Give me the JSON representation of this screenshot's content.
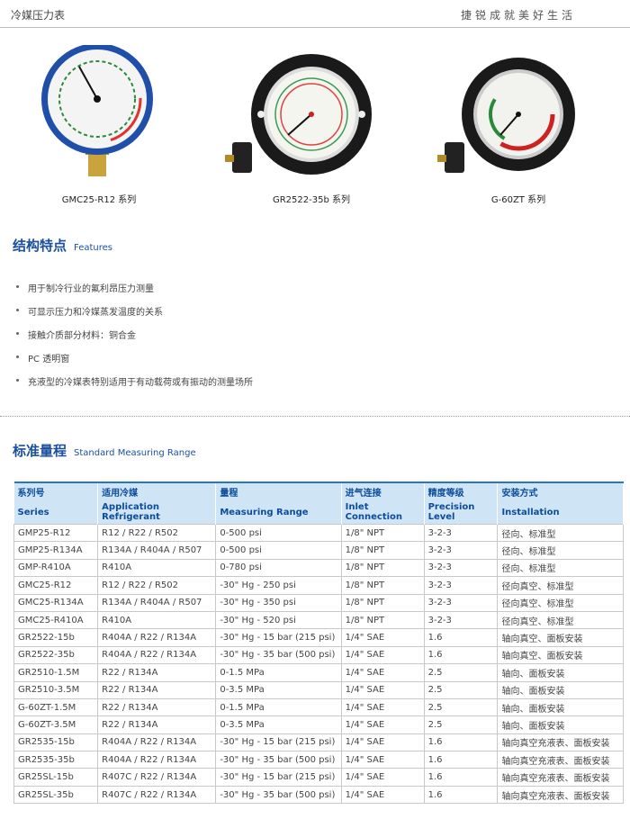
{
  "header": {
    "title": "冷媒压力表",
    "slogan": "捷锐成就美好生活"
  },
  "products": [
    {
      "caption": "GMC25-R12 系列"
    },
    {
      "caption": "GR2522-35b 系列"
    },
    {
      "caption": "G-60ZT 系列"
    }
  ],
  "features": {
    "heading": "结构特点",
    "heading_en": "Features",
    "items": [
      "用于制冷行业的氟利昂压力测量",
      "可显示压力和冷媒蒸发温度的关系",
      "接触介质部分材料：铜合金",
      "PC 透明窗",
      "充液型的冷媒表特别适用于有动载荷或有振动的测量场所"
    ]
  },
  "range": {
    "heading": "标准量程",
    "heading_en": "Standard Measuring Range",
    "table": {
      "header_cn": [
        "系列号",
        "适用冷媒",
        "量程",
        "进气连接",
        "精度等级",
        "安装方式"
      ],
      "header_en": [
        "Series",
        "Application Refrigerant",
        "Measuring Range",
        "Inlet  Connection",
        "Precision Level",
        "Installation"
      ],
      "rows": [
        [
          "GMP25-R12",
          "R12 / R22 / R502",
          "0-500 psi",
          "1/8\" NPT",
          "3-2-3",
          "径向、标准型"
        ],
        [
          "GMP25-R134A",
          "R134A / R404A / R507",
          "0-500 psi",
          "1/8\" NPT",
          "3-2-3",
          "径向、标准型"
        ],
        [
          "GMP-R410A",
          "R410A",
          "0-780 psi",
          "1/8\" NPT",
          "3-2-3",
          "径向、标准型"
        ],
        [
          "GMC25-R12",
          "R12 / R22 / R502",
          "-30\" Hg - 250 psi",
          "1/8\" NPT",
          "3-2-3",
          "径向真空、标准型"
        ],
        [
          "GMC25-R134A",
          "R134A / R404A / R507",
          "-30\" Hg - 350 psi",
          "1/8\" NPT",
          "3-2-3",
          "径向真空、标准型"
        ],
        [
          "GMC25-R410A",
          "R410A",
          "-30\" Hg - 520 psi",
          "1/8\" NPT",
          "3-2-3",
          "径向真空、标准型"
        ],
        [
          "GR2522-15b",
          "R404A / R22 / R134A",
          "-30\" Hg - 15 bar (215 psi)",
          "1/4\" SAE",
          "1.6",
          "轴向真空、面板安装"
        ],
        [
          "GR2522-35b",
          "R404A / R22 / R134A",
          "-30\" Hg - 35 bar (500 psi)",
          "1/4\" SAE",
          "1.6",
          "轴向真空、面板安装"
        ],
        [
          "GR2510-1.5M",
          "R22 / R134A",
          "0-1.5 MPa",
          "1/4\" SAE",
          "2.5",
          "轴向、面板安装"
        ],
        [
          "GR2510-3.5M",
          "R22 / R134A",
          "0-3.5 MPa",
          "1/4\" SAE",
          "2.5",
          "轴向、面板安装"
        ],
        [
          "G-60ZT-1.5M",
          "R22 / R134A",
          "0-1.5 MPa",
          "1/4\" SAE",
          "2.5",
          "轴向、面板安装"
        ],
        [
          "G-60ZT-3.5M",
          "R22 / R134A",
          "0-3.5 MPa",
          "1/4\" SAE",
          "2.5",
          "轴向、面板安装"
        ],
        [
          "GR2535-15b",
          "R404A / R22 / R134A",
          "-30\" Hg - 15 bar (215 psi)",
          "1/4\" SAE",
          "1.6",
          "轴向真空充液表、面板安装"
        ],
        [
          "GR2535-35b",
          "R404A / R22 / R134A",
          "-30\" Hg - 35 bar (500 psi)",
          "1/4\" SAE",
          "1.6",
          "轴向真空充液表、面板安装"
        ],
        [
          "GR25SL-15b",
          "R407C / R22 / R134A",
          "-30\" Hg - 15 bar (215 psi)",
          "1/4\" SAE",
          "1.6",
          "轴向真空充液表、面板安装"
        ],
        [
          "GR25SL-35b",
          "R407C / R22 / R134A",
          "-30\" Hg - 35 bar (500 psi)",
          "1/4\" SAE",
          "1.6",
          "轴向真空充液表、面板安装"
        ]
      ]
    }
  }
}
